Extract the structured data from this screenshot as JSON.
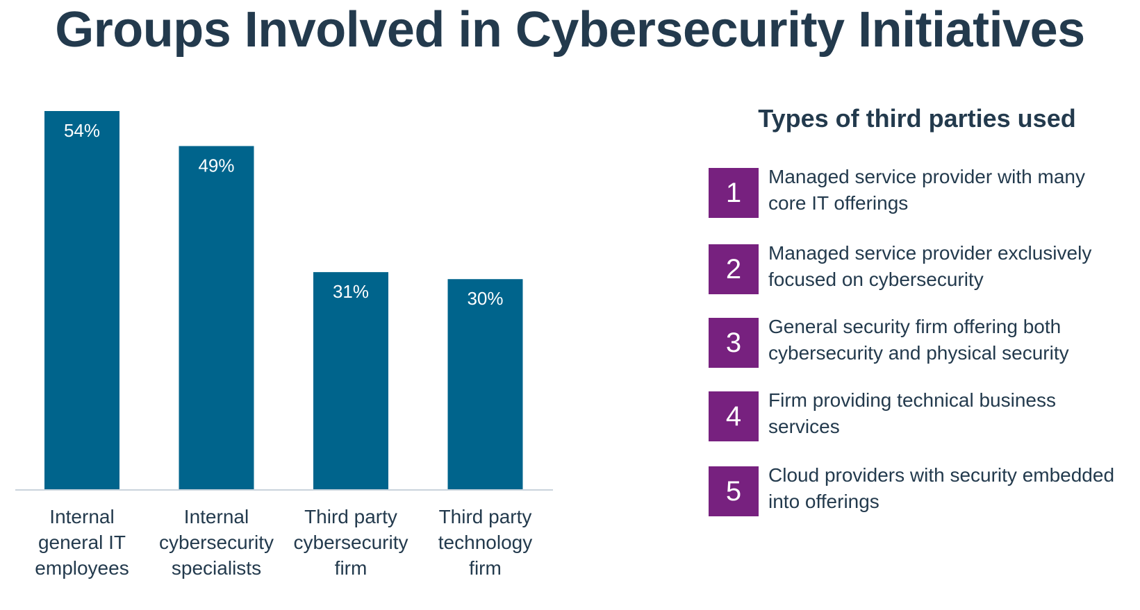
{
  "title": "Groups Involved in Cybersecurity Initiatives",
  "colors": {
    "bar": "#00648c",
    "badge": "#77217f",
    "text": "#233a4d"
  },
  "chart_data": {
    "type": "bar",
    "title": "Groups Involved in Cybersecurity Initiatives",
    "categories": [
      [
        "Internal",
        "general IT",
        "employees"
      ],
      [
        "Internal",
        "cybersecurity",
        "specialists"
      ],
      [
        "Third party",
        "cybersecurity",
        "firm"
      ],
      [
        "Third party",
        "technology",
        "firm"
      ]
    ],
    "values": [
      54,
      49,
      31,
      30
    ],
    "value_labels": [
      "54%",
      "49%",
      "31%",
      "30%"
    ],
    "unit": "%",
    "ylim": [
      0,
      54
    ],
    "xlabel": "",
    "ylabel": "",
    "grid": false,
    "legend": "none"
  },
  "third_parties": {
    "heading": "Types of third parties used",
    "items": [
      {
        "number": "1",
        "text": "Managed service provider with many core IT offerings"
      },
      {
        "number": "2",
        "text": "Managed service provider exclusively focused on cybersecurity"
      },
      {
        "number": "3",
        "text": "General security firm offering both cybersecurity and physical security"
      },
      {
        "number": "4",
        "text": "Firm providing technical business services"
      },
      {
        "number": "5",
        "text": "Cloud providers with security embedded into offerings"
      }
    ]
  }
}
